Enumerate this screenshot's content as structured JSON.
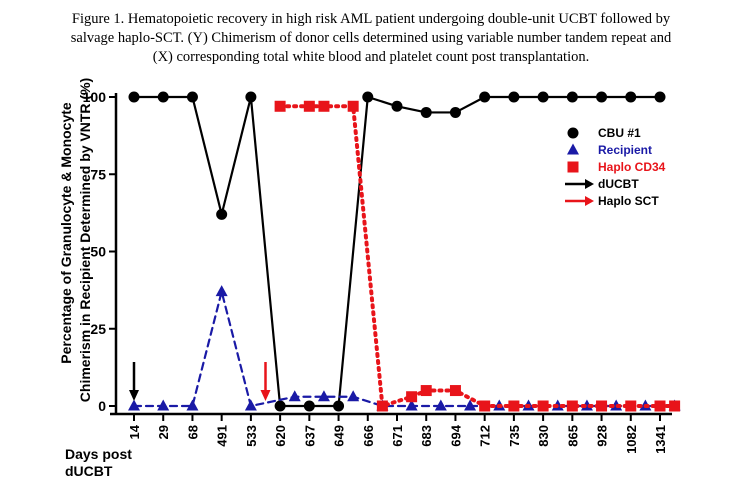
{
  "caption": {
    "line1": "Figure 1. Hematopoietic recovery in high risk AML patient undergoing double-unit UCBT followed by",
    "line2": "salvage haplo-SCT. (Y) Chimerism of donor cells determined using variable number tandem repeat and",
    "line3": "(X) corresponding total white blood and platelet count post transplantation."
  },
  "chart_data": {
    "type": "line",
    "categories": [
      "14",
      "29",
      "68",
      "491",
      "533",
      "620",
      "637",
      "649",
      "666",
      "671",
      "683",
      "694",
      "712",
      "735",
      "830",
      "865",
      "928",
      "1082",
      "1341"
    ],
    "ylabel_line1": "Percentage of  Granulocyte & Monocyte",
    "ylabel_line2": "Chimerism in Recipient Determined by VNTR (%)",
    "xlabel_line1": "Days post",
    "xlabel_line2": "dUCBT",
    "ylim": [
      0,
      100
    ],
    "yticks": [
      0,
      25,
      50,
      75,
      100
    ],
    "points_per_category": 2,
    "series": [
      {
        "name": "CBU #1",
        "color": "#000000",
        "marker": "circle",
        "line": "solid",
        "points": [
          [
            0,
            100
          ],
          [
            1,
            100
          ],
          [
            2,
            100
          ],
          [
            3,
            62
          ],
          [
            4,
            100
          ],
          [
            5,
            0
          ],
          [
            6,
            0
          ],
          [
            7,
            0
          ],
          [
            8,
            100
          ],
          [
            9,
            97
          ],
          [
            10,
            95
          ],
          [
            11,
            95
          ],
          [
            12,
            100
          ],
          [
            13,
            100
          ],
          [
            14,
            100
          ],
          [
            15,
            100
          ],
          [
            16,
            100
          ],
          [
            17,
            100
          ],
          [
            18,
            100
          ]
        ]
      },
      {
        "name": "Recipient",
        "color": "#1a1aa6",
        "marker": "triangle",
        "line": "dashed",
        "points": [
          [
            0,
            0
          ],
          [
            1,
            0
          ],
          [
            2,
            0
          ],
          [
            3,
            37
          ],
          [
            4,
            0
          ],
          [
            5.5,
            3
          ],
          [
            6.5,
            3
          ],
          [
            7.5,
            3
          ],
          [
            8.5,
            0
          ],
          [
            9.5,
            0
          ],
          [
            10.5,
            0
          ],
          [
            11.5,
            0
          ],
          [
            12.5,
            0
          ],
          [
            13.5,
            0
          ],
          [
            14.5,
            0
          ],
          [
            15.5,
            0
          ],
          [
            16.5,
            0
          ],
          [
            17.5,
            0
          ],
          [
            18.5,
            0
          ]
        ]
      },
      {
        "name": "Haplo CD34",
        "color": "#e8141a",
        "marker": "square",
        "line": "dotted",
        "points": [
          [
            5,
            97
          ],
          [
            6,
            97
          ],
          [
            6.5,
            97
          ],
          [
            7.5,
            97
          ],
          [
            8.5,
            0
          ],
          [
            9.5,
            3
          ],
          [
            10,
            5
          ],
          [
            11,
            5
          ],
          [
            12,
            0
          ],
          [
            13,
            0
          ],
          [
            14,
            0
          ],
          [
            15,
            0
          ],
          [
            16,
            0
          ],
          [
            17,
            0
          ],
          [
            18,
            0
          ],
          [
            18.5,
            0
          ]
        ]
      }
    ],
    "events": [
      {
        "name": "dUCBT",
        "color": "#000000",
        "category_index": 0
      },
      {
        "name": "Haplo SCT",
        "color": "#e8141a",
        "category_index": 4.5
      }
    ],
    "legend_position": "right"
  }
}
